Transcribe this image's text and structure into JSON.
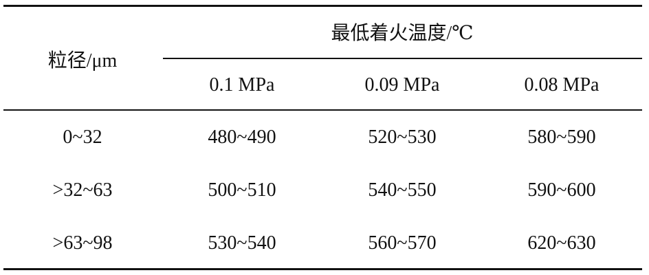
{
  "table": {
    "header": {
      "row_label": "粒径/μm",
      "group_label": "最低着火温度/℃",
      "columns": [
        "0.1 MPa",
        "0.09 MPa",
        "0.08 MPa"
      ]
    },
    "rows": [
      [
        "0~32",
        "480~490",
        "520~530",
        "580~590"
      ],
      [
        ">32~63",
        "500~510",
        "540~550",
        "590~600"
      ],
      [
        ">63~98",
        "530~540",
        "560~570",
        "620~630"
      ]
    ]
  }
}
